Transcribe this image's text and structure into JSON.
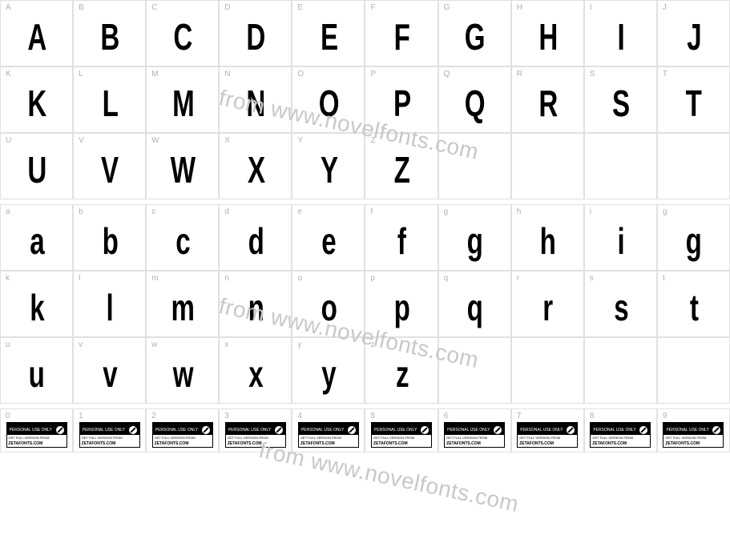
{
  "watermark_text": "from www.novelfonts.com",
  "watermark_color": "#c8c8c8",
  "border_color": "#e0e0e0",
  "label_color": "#b0b0b0",
  "glyph_color": "#000000",
  "background_color": "#ffffff",
  "rows": {
    "upper1": {
      "labels": [
        "A",
        "B",
        "C",
        "D",
        "E",
        "F",
        "G",
        "H",
        "I",
        "J"
      ],
      "glyphs": [
        "A",
        "B",
        "C",
        "D",
        "E",
        "F",
        "G",
        "H",
        "I",
        "J"
      ]
    },
    "upper2": {
      "labels": [
        "K",
        "L",
        "M",
        "N",
        "O",
        "P",
        "Q",
        "R",
        "S",
        "T"
      ],
      "glyphs": [
        "K",
        "L",
        "M",
        "N",
        "O",
        "P",
        "Q",
        "R",
        "S",
        "T"
      ]
    },
    "upper3": {
      "labels": [
        "U",
        "V",
        "W",
        "X",
        "Y",
        "Z",
        "",
        "",
        "",
        ""
      ],
      "glyphs": [
        "U",
        "V",
        "W",
        "X",
        "Y",
        "Z",
        "",
        "",
        "",
        ""
      ]
    },
    "lower1": {
      "labels": [
        "a",
        "b",
        "c",
        "d",
        "e",
        "f",
        "g",
        "h",
        "i",
        "g"
      ],
      "glyphs": [
        "a",
        "b",
        "c",
        "d",
        "e",
        "f",
        "g",
        "h",
        "i",
        "g"
      ]
    },
    "lower2": {
      "labels": [
        "k",
        "l",
        "m",
        "n",
        "o",
        "p",
        "q",
        "r",
        "s",
        "t"
      ],
      "glyphs": [
        "k",
        "l",
        "m",
        "n",
        "o",
        "p",
        "q",
        "r",
        "s",
        "t"
      ]
    },
    "lower3": {
      "labels": [
        "u",
        "v",
        "w",
        "x",
        "y",
        "z",
        "",
        "",
        "",
        ""
      ],
      "glyphs": [
        "u",
        "v",
        "w",
        "x",
        "y",
        "z",
        "",
        "",
        "",
        ""
      ]
    },
    "numbers": {
      "labels": [
        "0",
        "1",
        "2",
        "3",
        "4",
        "5",
        "6",
        "7",
        "8",
        "9"
      ]
    }
  },
  "badge": {
    "top_text": "PERSONAL USE ONLY",
    "mid_text": "GET FULL VERSION FROM",
    "bot_text": "ZETAFONTS.COM"
  }
}
